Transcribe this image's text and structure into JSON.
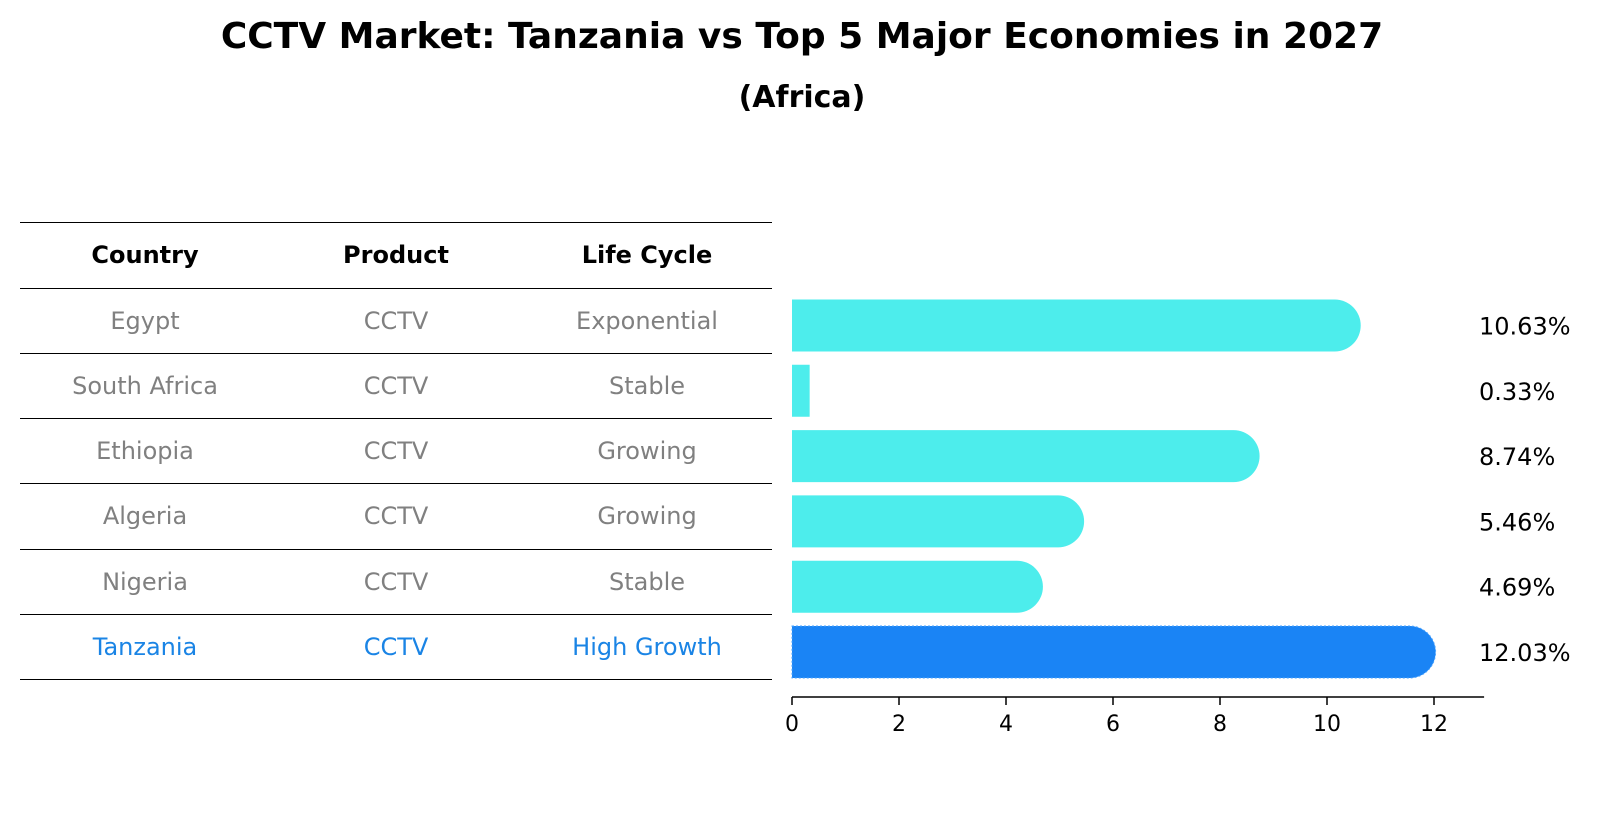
{
  "title": "CCTV Market: Tanzania vs Top 5 Major Economies in 2027",
  "subtitle": "(Africa)",
  "table": {
    "headers": [
      "Country",
      "Product",
      "Life Cycle"
    ],
    "rows": [
      {
        "country": "Egypt",
        "product": "CCTV",
        "life_cycle": "Exponential"
      },
      {
        "country": "South Africa",
        "product": "CCTV",
        "life_cycle": "Stable"
      },
      {
        "country": "Ethiopia",
        "product": "CCTV",
        "life_cycle": "Growing"
      },
      {
        "country": "Algeria",
        "product": "CCTV",
        "life_cycle": "Growing"
      },
      {
        "country": "Nigeria",
        "product": "CCTV",
        "life_cycle": "Stable"
      },
      {
        "country": "Tanzania",
        "product": "CCTV",
        "life_cycle": "High Growth"
      }
    ]
  },
  "chart_data": {
    "type": "bar",
    "orientation": "horizontal",
    "title": "CCTV Market: Tanzania vs Top 5 Major Economies in 2027",
    "subtitle": "(Africa)",
    "categories": [
      "Egypt",
      "South Africa",
      "Ethiopia",
      "Algeria",
      "Nigeria",
      "Tanzania"
    ],
    "values": [
      10.63,
      0.33,
      8.74,
      5.46,
      4.69,
      12.03
    ],
    "value_labels": [
      "10.63%",
      "0.33%",
      "8.74%",
      "5.46%",
      "4.69%",
      "12.03%"
    ],
    "highlight": "Tanzania",
    "xlim": [
      0,
      12.6
    ],
    "xticks": [
      0,
      2,
      4,
      6,
      8,
      10,
      12
    ],
    "xlabel": "",
    "ylabel": "",
    "colors": {
      "default": "#4dedec",
      "highlight": "#1a84f5"
    }
  },
  "colors": {
    "muted_text": "#808080",
    "highlight_text": "#1a84e5"
  }
}
